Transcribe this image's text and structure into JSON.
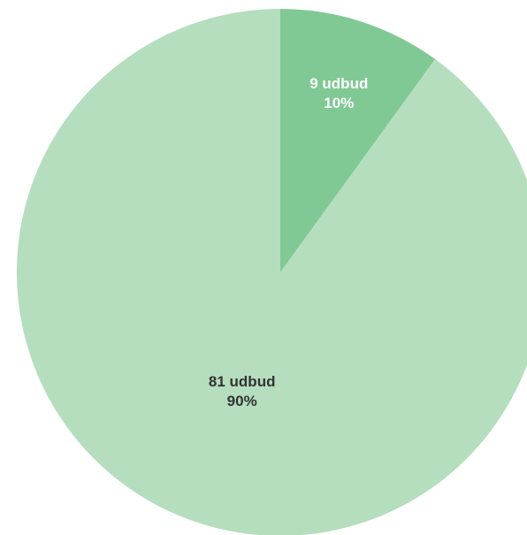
{
  "chart_data": {
    "type": "pie",
    "title": "",
    "unit": "udbud",
    "start_angle_deg": 0,
    "direction": "clockwise",
    "slices": [
      {
        "label": "9 udbud",
        "value": 9,
        "percent": "10%",
        "color": "#80C994",
        "label_color": "#FFFFFF"
      },
      {
        "label": "81 udbud",
        "value": 81,
        "percent": "90%",
        "color": "#B5DEBE",
        "label_color": "#333333"
      }
    ]
  }
}
